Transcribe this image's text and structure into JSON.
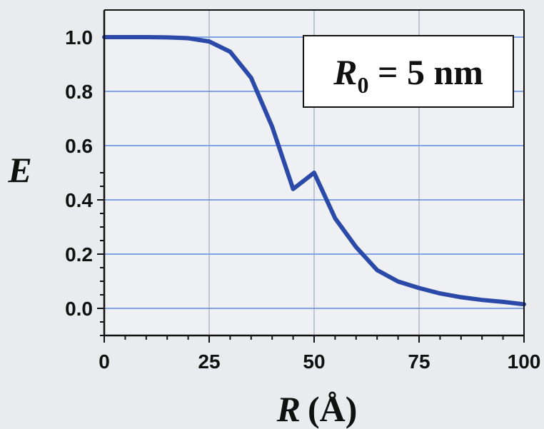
{
  "chart_data": {
    "type": "line",
    "xlabel": {
      "symbol": "R",
      "unit": "(Å)"
    },
    "ylabel": "E",
    "annotation": {
      "symbol": "R",
      "subscript": "0",
      "text": " = 5 nm"
    },
    "xlim": [
      0,
      100
    ],
    "ylim": [
      -0.1,
      1.1
    ],
    "x_ticks": [
      0,
      25,
      50,
      75,
      100
    ],
    "x_tick_labels": [
      "0",
      "25",
      "50",
      "75",
      "100"
    ],
    "y_ticks": [
      0.0,
      0.2,
      0.4,
      0.6,
      0.8,
      1.0
    ],
    "y_tick_labels": [
      "0.0",
      "0.2",
      "0.4",
      "0.6",
      "0.8",
      "1.0"
    ],
    "grid": true,
    "series": [
      {
        "color": "#2a49a8",
        "x": [
          0,
          5,
          10,
          15,
          20,
          25,
          30,
          35,
          40,
          45,
          50,
          55,
          60,
          65,
          70,
          75,
          80,
          85,
          90,
          95,
          100
        ],
        "y": [
          1.0,
          1.0,
          1.0,
          0.999,
          0.996,
          0.984,
          0.946,
          0.85,
          0.67,
          0.44,
          0.5,
          0.332,
          0.226,
          0.141,
          0.099,
          0.075,
          0.055,
          0.041,
          0.031,
          0.024,
          0.015
        ]
      }
    ]
  },
  "colors": {
    "background": "#e9ebee",
    "gridline": "#7fa3e6",
    "axis": "#111111",
    "curve": "#2a49a8"
  }
}
